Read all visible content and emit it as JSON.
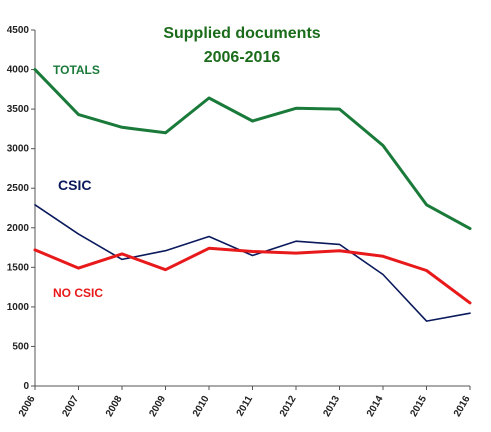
{
  "chart_data": {
    "type": "line",
    "title_line1": "Supplied documents",
    "title_line2": "2006-2016",
    "x": [
      "2006",
      "2007",
      "2008",
      "2009",
      "2010",
      "2011",
      "2012",
      "2013",
      "2014",
      "2015",
      "2016"
    ],
    "yticks": [
      "0",
      "500",
      "1000",
      "1500",
      "2000",
      "2500",
      "3000",
      "3500",
      "4000",
      "4500"
    ],
    "ylim": [
      0,
      4500
    ],
    "grid": false,
    "series": [
      {
        "name": "TOTALS",
        "color": "#1a7a3a",
        "values": [
          4000,
          3430,
          3270,
          3200,
          3640,
          3350,
          3510,
          3500,
          3040,
          2290,
          1990
        ]
      },
      {
        "name": "CSIC",
        "color": "#0a1a5c",
        "values": [
          2290,
          1920,
          1600,
          1710,
          1890,
          1650,
          1830,
          1790,
          1410,
          820,
          920
        ]
      },
      {
        "name": "NO CSIC",
        "color": "#e8191a",
        "values": [
          1720,
          1490,
          1670,
          1470,
          1740,
          1700,
          1680,
          1710,
          1640,
          1460,
          1050
        ]
      }
    ],
    "title_color": "#1a6b1a"
  }
}
